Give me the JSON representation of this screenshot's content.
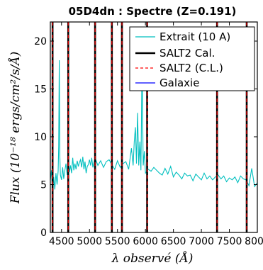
{
  "chart_data": {
    "type": "line",
    "title": "05D4dn : Spectre (Z=0.191)",
    "xlabel": "λ observé (Å)",
    "ylabel": "Flux (10⁻¹⁸ ergs/cm²/s/Å)",
    "xlim": [
      4300,
      8000
    ],
    "ylim": [
      0,
      22
    ],
    "xticks": [
      4500,
      5000,
      5500,
      6000,
      6500,
      7000,
      7500,
      8000
    ],
    "xtick_labels": [
      "4500",
      "5000",
      "5500",
      "6000",
      "6500",
      "7000",
      "7500",
      "8000"
    ],
    "yticks": [
      0,
      5,
      10,
      15,
      20
    ],
    "ytick_labels": [
      "0",
      "5",
      "10",
      "15",
      "20"
    ],
    "grid": false,
    "legend_position": "top-right",
    "vertical_lines": {
      "black": [
        4340,
        4620,
        5100,
        5400,
        5580,
        6030,
        7280,
        7810
      ],
      "red_dashed": [
        4340,
        4620,
        5100,
        5400,
        5580,
        6030,
        7280,
        7810
      ]
    },
    "series": [
      {
        "name": "Extrait (10 A)",
        "color": "#00bfbf",
        "x": [
          4300,
          4320,
          4340,
          4360,
          4380,
          4400,
          4420,
          4440,
          4450,
          4460,
          4470,
          4480,
          4500,
          4520,
          4540,
          4560,
          4580,
          4600,
          4620,
          4640,
          4660,
          4680,
          4700,
          4720,
          4740,
          4760,
          4780,
          4800,
          4820,
          4840,
          4860,
          4880,
          4900,
          4920,
          4940,
          4960,
          4980,
          5000,
          5020,
          5040,
          5060,
          5080,
          5100,
          5150,
          5200,
          5250,
          5300,
          5350,
          5400,
          5450,
          5500,
          5550,
          5600,
          5650,
          5700,
          5750,
          5780,
          5800,
          5820,
          5840,
          5860,
          5880,
          5900,
          5920,
          5940,
          5960,
          5980,
          6000,
          6050,
          6100,
          6150,
          6200,
          6250,
          6300,
          6350,
          6400,
          6450,
          6500,
          6550,
          6600,
          6650,
          6700,
          6750,
          6800,
          6850,
          6900,
          6950,
          7000,
          7050,
          7100,
          7150,
          7200,
          7250,
          7300,
          7350,
          7400,
          7450,
          7500,
          7550,
          7600,
          7650,
          7700,
          7750,
          7800,
          7850,
          7900,
          7950,
          8000
        ],
        "y": [
          5.5,
          6.5,
          4.0,
          5.8,
          4.5,
          6.2,
          5.0,
          6.4,
          9.0,
          18.0,
          8.0,
          6.0,
          5.5,
          6.8,
          5.6,
          6.5,
          7.2,
          6.0,
          7.5,
          6.3,
          7.0,
          6.2,
          7.8,
          6.5,
          7.2,
          6.6,
          7.5,
          6.9,
          7.3,
          7.6,
          6.8,
          7.9,
          6.6,
          7.4,
          6.2,
          6.9,
          7.1,
          7.6,
          7.0,
          7.8,
          6.8,
          7.3,
          7.8,
          7.0,
          7.5,
          6.8,
          7.4,
          7.6,
          7.1,
          6.6,
          7.5,
          6.8,
          7.2,
          7.4,
          6.6,
          8.8,
          7.0,
          9.5,
          11.0,
          7.2,
          12.5,
          7.0,
          9.5,
          6.5,
          18.0,
          7.0,
          8.5,
          6.2,
          6.6,
          6.4,
          6.8,
          6.5,
          6.2,
          6.0,
          6.7,
          6.1,
          6.9,
          5.8,
          6.3,
          6.0,
          5.6,
          6.2,
          5.9,
          6.0,
          5.4,
          6.1,
          5.8,
          5.5,
          6.2,
          5.6,
          5.9,
          5.5,
          5.8,
          6.0,
          5.6,
          5.9,
          5.3,
          5.7,
          5.5,
          5.8,
          5.2,
          5.9,
          5.6,
          5.5,
          4.9,
          6.7,
          4.8,
          5.2
        ]
      },
      {
        "name": "SALT2 Cal.",
        "color": "#000000"
      },
      {
        "name": "SALT2 (C.L.)",
        "color": "#ff0000"
      },
      {
        "name": "Galaxie",
        "color": "#0000ff"
      }
    ]
  }
}
